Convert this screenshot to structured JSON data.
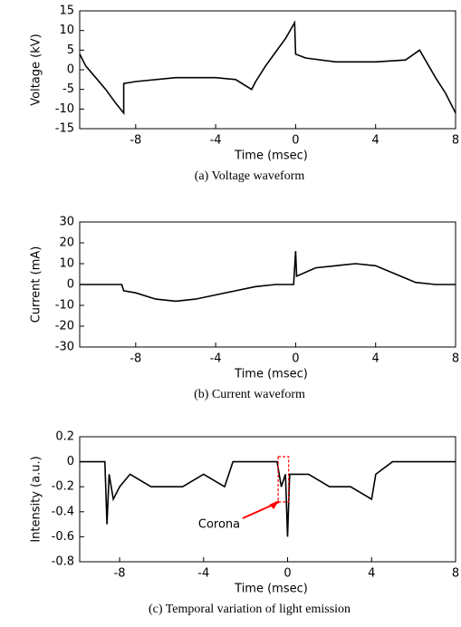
{
  "chart_data": [
    {
      "type": "line",
      "caption": "(a) Voltage waveform",
      "x_label": "Time (msec)",
      "y_label": "Voltage (kV)",
      "x": [
        -10.8,
        -10.5,
        -10,
        -9.5,
        -9,
        -8.6,
        -8.6,
        -8,
        -6,
        -4,
        -3,
        -2.2,
        -2,
        -1.5,
        -1,
        -0.5,
        -0.05,
        0,
        0.5,
        2,
        4,
        5.5,
        6.2,
        7,
        7.5,
        8
      ],
      "values": [
        4,
        1,
        -2,
        -5,
        -8.5,
        -11,
        -3.5,
        -3,
        -2,
        -2,
        -2.5,
        -5,
        -3,
        1,
        4.5,
        8,
        12,
        4,
        3,
        2,
        2,
        2.5,
        5,
        -2,
        -6,
        -11
      ],
      "color": "#000000",
      "xlim": [
        -10.8,
        8
      ],
      "xticks": [
        -8,
        -4,
        0,
        4,
        8
      ],
      "ylim": [
        -15,
        15
      ],
      "yticks": [
        -15,
        -10,
        -5,
        0,
        5,
        10,
        15
      ]
    },
    {
      "type": "line",
      "caption": "(b) Current waveform",
      "x_label": "Time (msec)",
      "y_label": "Current (mA)",
      "x": [
        -10.8,
        -8.7,
        -8.6,
        -8,
        -7,
        -6,
        -5,
        -4,
        -3,
        -2,
        -1,
        -0.1,
        0,
        0.05,
        1,
        2,
        3,
        4,
        5,
        6,
        7,
        8
      ],
      "values": [
        0,
        0,
        -3,
        -4,
        -7,
        -8,
        -7,
        -5,
        -3,
        -1,
        0,
        0,
        16,
        4,
        8,
        9,
        10,
        9,
        5,
        1,
        0,
        0
      ],
      "color": "#000000",
      "xlim": [
        -10.8,
        8
      ],
      "xticks": [
        -8,
        -4,
        0,
        4,
        8
      ],
      "ylim": [
        -30,
        30
      ],
      "yticks": [
        -30,
        -20,
        -10,
        0,
        10,
        20,
        30
      ]
    },
    {
      "type": "line",
      "caption": "(c) Temporal variation of light emission",
      "x_label": "Time (msec)",
      "y_label": "Intensity (a.u.)",
      "x": [
        -9.9,
        -8.7,
        -8.6,
        -8.5,
        -8.3,
        -8,
        -7.5,
        -6.5,
        -5,
        -4,
        -3,
        -2.6,
        -1,
        -0.5,
        -0.3,
        -0.1,
        0,
        0.1,
        1,
        2,
        3,
        4,
        4.2,
        5,
        8
      ],
      "values": [
        0,
        0,
        -0.5,
        -0.1,
        -0.3,
        -0.2,
        -0.1,
        -0.2,
        -0.2,
        -0.1,
        -0.2,
        0,
        0,
        0,
        -0.2,
        -0.1,
        -0.6,
        -0.1,
        -0.1,
        -0.2,
        -0.2,
        -0.3,
        -0.1,
        0,
        0
      ],
      "color": "#000000",
      "xlim": [
        -9.9,
        8
      ],
      "xticks": [
        -8,
        -4,
        0,
        4,
        8
      ],
      "ylim": [
        -0.8,
        0.2
      ],
      "yticks": [
        -0.8,
        -0.6,
        -0.4,
        -0.2,
        0,
        0.2
      ],
      "annotation": "Corona",
      "annotation_color": "#ff0000"
    }
  ]
}
